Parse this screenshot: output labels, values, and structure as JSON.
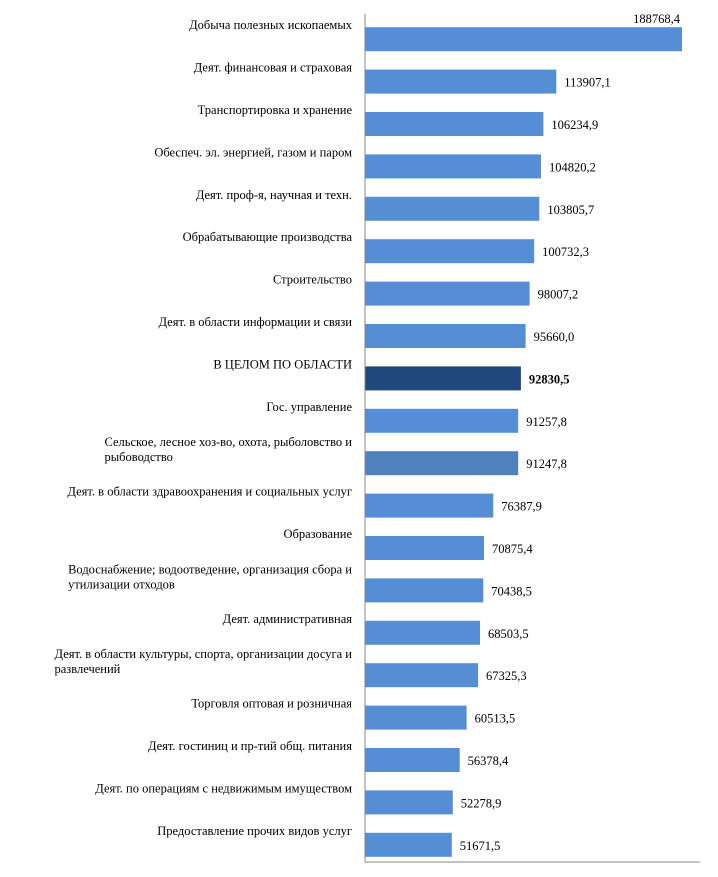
{
  "chart_data": {
    "type": "bar",
    "orientation": "horizontal",
    "categories": [
      "Добыча полезных ископаемых",
      "Деят. финансовая и страховая",
      "Транспортировка и хранение",
      "Обеспеч. эл. энергией, газом и паром",
      "Деят. проф-я, научная и техн.",
      "Обрабатывающие производства",
      "Строительство",
      "Деят. в области информации и связи",
      "В ЦЕЛОМ ПО ОБЛАСТИ",
      "Гос. управление",
      "Сельское, лесное хоз-во, охота, рыболовство и рыбоводство",
      "Деят. в области здравоохранения и социальных услуг",
      "Образование",
      "Водоснабжение; водоотведение, организация сбора и утилизации отходов",
      "Деят. административная",
      "Деят. в области культуры, спорта, организации досуга и развлечений",
      "Торговля оптовая и розничная",
      "Деят. гостиниц и пр-тий общ. питания",
      "Деят. по операциям с недвижимым имуществом",
      "Предоставление прочих видов услуг"
    ],
    "label_lines": [
      [
        "Добыча полезных ископаемых"
      ],
      [
        "Деят. финансовая и страховая"
      ],
      [
        "Транспортировка и хранение"
      ],
      [
        "Обеспеч. эл. энергией, газом и паром"
      ],
      [
        "Деят. проф-я, научная и техн."
      ],
      [
        "Обрабатывающие производства"
      ],
      [
        "Строительство"
      ],
      [
        "Деят. в области информации и связи"
      ],
      [
        "В ЦЕЛОМ ПО ОБЛАСТИ"
      ],
      [
        "Гос. управление"
      ],
      [
        "Сельское, лесное хоз-во, охота, рыболовство и",
        "рыбоводство"
      ],
      [
        "Деят. в области здравоохранения и социальных услуг"
      ],
      [
        "Образование"
      ],
      [
        "Водоснабжение; водоотведение, организация сбора и",
        "утилизации отходов"
      ],
      [
        "Деят. административная"
      ],
      [
        "Деят. в области культуры, спорта, организации досуга и",
        "развлечений"
      ],
      [
        "Торговля оптовая и розничная"
      ],
      [
        "Деят. гостиниц и пр-тий общ. питания"
      ],
      [
        "Деят. по операциям с недвижимым имуществом"
      ],
      [
        "Предоставление прочих видов услуг"
      ]
    ],
    "values": [
      188768.4,
      113907.1,
      106234.9,
      104820.2,
      103805.7,
      100732.3,
      98007.2,
      95660.0,
      92830.5,
      91257.8,
      91247.8,
      76387.9,
      70875.4,
      70438.5,
      68503.5,
      67325.3,
      60513.5,
      56378.4,
      52278.9,
      51671.5
    ],
    "value_labels": [
      "188768,4",
      "113907,1",
      "106234,9",
      "104820,2",
      "103805,7",
      "100732,3",
      "98007,2",
      "95660,0",
      "92830,5",
      "91257,8",
      "91247,8",
      "76387,9",
      "70875,4",
      "70438,5",
      "68503,5",
      "67325,3",
      "60513,5",
      "56378,4",
      "52278,9",
      "51671,5"
    ],
    "bar_colors": [
      "#558ed5",
      "#558ed5",
      "#558ed5",
      "#558ed5",
      "#558ed5",
      "#558ed5",
      "#558ed5",
      "#558ed5",
      "#1f497d",
      "#558ed5",
      "#4f81bd",
      "#558ed5",
      "#558ed5",
      "#558ed5",
      "#558ed5",
      "#558ed5",
      "#558ed5",
      "#558ed5",
      "#558ed5",
      "#558ed5"
    ],
    "bold_value_index": 8,
    "xlim": [
      0,
      190000
    ],
    "grid": false,
    "legend": "none"
  }
}
